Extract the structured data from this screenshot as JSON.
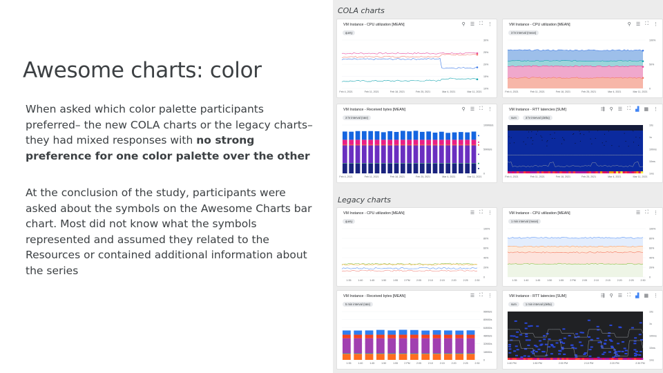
{
  "slide": {
    "title": "Awesome charts: color",
    "p1_a": "When asked which color palette participants preferred– the new COLA charts or the legacy charts– they had mixed responses with ",
    "p1_b": "no strong preference for one color palette over the other",
    "p2": "At the conclusion of the study, participants were asked about the symbols on the Awesome Charts bar chart. Most did not know what the symbols represented and assumed they related to the Resources or contained additional information about the series"
  },
  "sections": {
    "cola": "COLA charts",
    "legacy": "Legacy charts"
  },
  "cards": [
    {
      "title": "VM Instance - CPU utilization [MEAN]",
      "chips": [
        "query"
      ],
      "icons": [
        "search",
        "legend",
        "fullscreen",
        "more"
      ],
      "type": "line",
      "ylim": [
        10,
        30
      ],
      "yticks": [
        "30%",
        "25%",
        "20%",
        "15%",
        "10%"
      ],
      "xticks": [
        "Feb 4, 2021",
        "Feb 11, 2021",
        "Feb 18, 2021",
        "Feb 25, 2021",
        "Mar 4, 2021",
        "Mar 11, 2021"
      ],
      "series": [
        {
          "color": "#e8459a",
          "level": 24.5
        },
        {
          "color": "#f4786a",
          "level": 23,
          "end": 24
        },
        {
          "color": "#3b78e7",
          "level": 22,
          "end": 18.5
        },
        {
          "color": "#12a4af",
          "level": 13,
          "end": 14
        }
      ],
      "markers": true
    },
    {
      "title": "VM Instance - CPU utilization [MEAN]",
      "chips": [
        "3 hr interval (mean)"
      ],
      "icons": [
        "search",
        "legend",
        "fullscreen",
        "more"
      ],
      "type": "area",
      "ylim": [
        0,
        100
      ],
      "yticks": [
        "100%",
        "50%",
        "0"
      ],
      "xticks": [
        "Feb 4, 2021",
        "Feb 11, 2021",
        "Feb 18, 2021",
        "Feb 25, 2021",
        "Mar 4, 2021",
        "Mar 11, 2021"
      ],
      "series": [
        {
          "color": "#f4786a",
          "fill": "#f7b6a8",
          "level": 22
        },
        {
          "color": "#e8459a",
          "fill": "#f0a8cc",
          "level": 46
        },
        {
          "color": "#12a4af",
          "fill": "#9cd5da",
          "level": 57
        },
        {
          "color": "#3b78e7",
          "fill": "#9dbfea",
          "level": 79
        }
      ]
    },
    {
      "title": "VM Instance - Received bytes [MEAN]",
      "chips": [
        "3 hr interval (rate)"
      ],
      "icons": [
        "search",
        "legend",
        "fullscreen",
        "more"
      ],
      "type": "bar",
      "ylim": [
        0,
        100
      ],
      "yticks": [
        "100KiB/s",
        "50KiB/s",
        "0"
      ],
      "xticks": [
        "Feb 4, 2021",
        "Feb 11, 2021",
        "Feb 18, 2021",
        "Feb 25, 2021",
        "Mar 4, 2021",
        "Mar 11, 2021"
      ],
      "bars": 21,
      "segments": [
        {
          "color": "#1a237e",
          "h": 20
        },
        {
          "color": "#1e9e5a",
          "h": 1
        },
        {
          "color": "#6a2fc0",
          "h": 37
        },
        {
          "color": "#f4511e",
          "h": 1.5
        },
        {
          "color": "#e91e85",
          "h": 10
        },
        {
          "color": "#1565e0",
          "h": 17
        }
      ],
      "markers": true
    },
    {
      "title": "VM Instance - RTT latencies [SUM]",
      "chips": [
        "sum",
        "3 hr interval (delta)"
      ],
      "icons": [
        "filter",
        "search",
        "legend",
        "fullscreen",
        "heatmap",
        "grid",
        "more"
      ],
      "type": "heatmap",
      "bg": "#0b2a9e",
      "yticks": [
        "10s",
        "1s",
        "100ms",
        "10ms",
        "1ms"
      ],
      "xticks": [
        "Feb 4, 2021",
        "Feb 11, 2021",
        "Feb 18, 2021",
        "Feb 25, 2021",
        "Mar 4, 2021",
        "Mar 11, 2021"
      ]
    },
    {
      "title": "VM Instance - CPU utilization [MEAN]",
      "chips": [
        "query"
      ],
      "icons": [
        "legend",
        "fullscreen",
        "more"
      ],
      "type": "line",
      "ylim": [
        0,
        100
      ],
      "yticks": [
        "100%",
        "80%",
        "60%",
        "40%",
        "20%",
        "0"
      ],
      "xticks": [
        "1:35",
        "1:40",
        "1:45",
        "1:50",
        "1:55",
        "2 PM",
        "2:05",
        "2:10",
        "2:15",
        "2:20",
        "2:25",
        "2:30"
      ],
      "series": [
        {
          "color": "#8bc34a",
          "level": 27
        },
        {
          "color": "#ffb74d",
          "level": 25.5
        },
        {
          "color": "#5e97f6",
          "level": 18
        },
        {
          "color": "#f28b82",
          "level": 13
        }
      ]
    },
    {
      "title": "VM Instance - CPU utilization [MEAN]",
      "chips": [
        "1 min interval (mean)"
      ],
      "icons": [
        "legend",
        "fullscreen",
        "more"
      ],
      "type": "area",
      "ylim": [
        0,
        100
      ],
      "yticks": [
        "100%",
        "80%",
        "60%",
        "40%",
        "20%",
        "0"
      ],
      "xticks": [
        "1:35",
        "1:40",
        "1:45",
        "1:50",
        "1:55",
        "2 PM",
        "2:05",
        "2:10",
        "2:15",
        "2:20",
        "2:25",
        "2:30"
      ],
      "series": [
        {
          "color": "#8bc34a",
          "fill": "#eef5e6",
          "level": 27
        },
        {
          "color": "#f4785f",
          "fill": "#fde3dc",
          "level": 51
        },
        {
          "color": "#ffa060",
          "fill": "#fdeadc",
          "level": 63
        },
        {
          "color": "#5e97f6",
          "fill": "#e3edfd",
          "level": 81
        }
      ]
    },
    {
      "title": "VM Instance - Received bytes [MEAN]",
      "chips": [
        "5 min interval (rate)"
      ],
      "icons": [
        "legend",
        "fullscreen",
        "more"
      ],
      "type": "bar",
      "ylim": [
        0,
        96
      ],
      "yticks": [
        "96KiB/s",
        "80KiB/s",
        "64KiB/s",
        "48KiB/s",
        "32KiB/s",
        "16KiB/s",
        "0"
      ],
      "xticks": [
        "1:35",
        "1:40",
        "1:45",
        "1:50",
        "1:55",
        "2 PM",
        "2:05",
        "2:10",
        "2:15",
        "2:20",
        "2:25",
        "2:30"
      ],
      "bars": 12,
      "segments": [
        {
          "color": "#ff6d1f",
          "h": 12
        },
        {
          "color": "#26a69a",
          "h": 1
        },
        {
          "color": "#a13fb0",
          "h": 30
        },
        {
          "color": "#f4431e",
          "h": 7
        },
        {
          "color": "#2f7df0",
          "h": 9
        }
      ]
    },
    {
      "title": "VM Instance - RTT latencies [SUM]",
      "chips": [
        "sum",
        "1 min interval (delta)"
      ],
      "icons": [
        "filter",
        "search",
        "legend",
        "fullscreen",
        "heatmap",
        "grid",
        "more"
      ],
      "type": "heatmap",
      "bg": "#202124",
      "yticks": [
        "10s",
        "1s",
        "100ms",
        "10ms",
        "1ms"
      ],
      "xticks": [
        "1:40 PM",
        "1:50 PM",
        "2:00 PM",
        "2:10 PM",
        "2:20 PM",
        "2:30 PM"
      ]
    }
  ],
  "icon_glyphs": {
    "search": "⚲",
    "legend": "☰",
    "fullscreen": "⛶",
    "more": "⋮",
    "filter": "⇶",
    "heatmap": "▟",
    "grid": "▦"
  }
}
